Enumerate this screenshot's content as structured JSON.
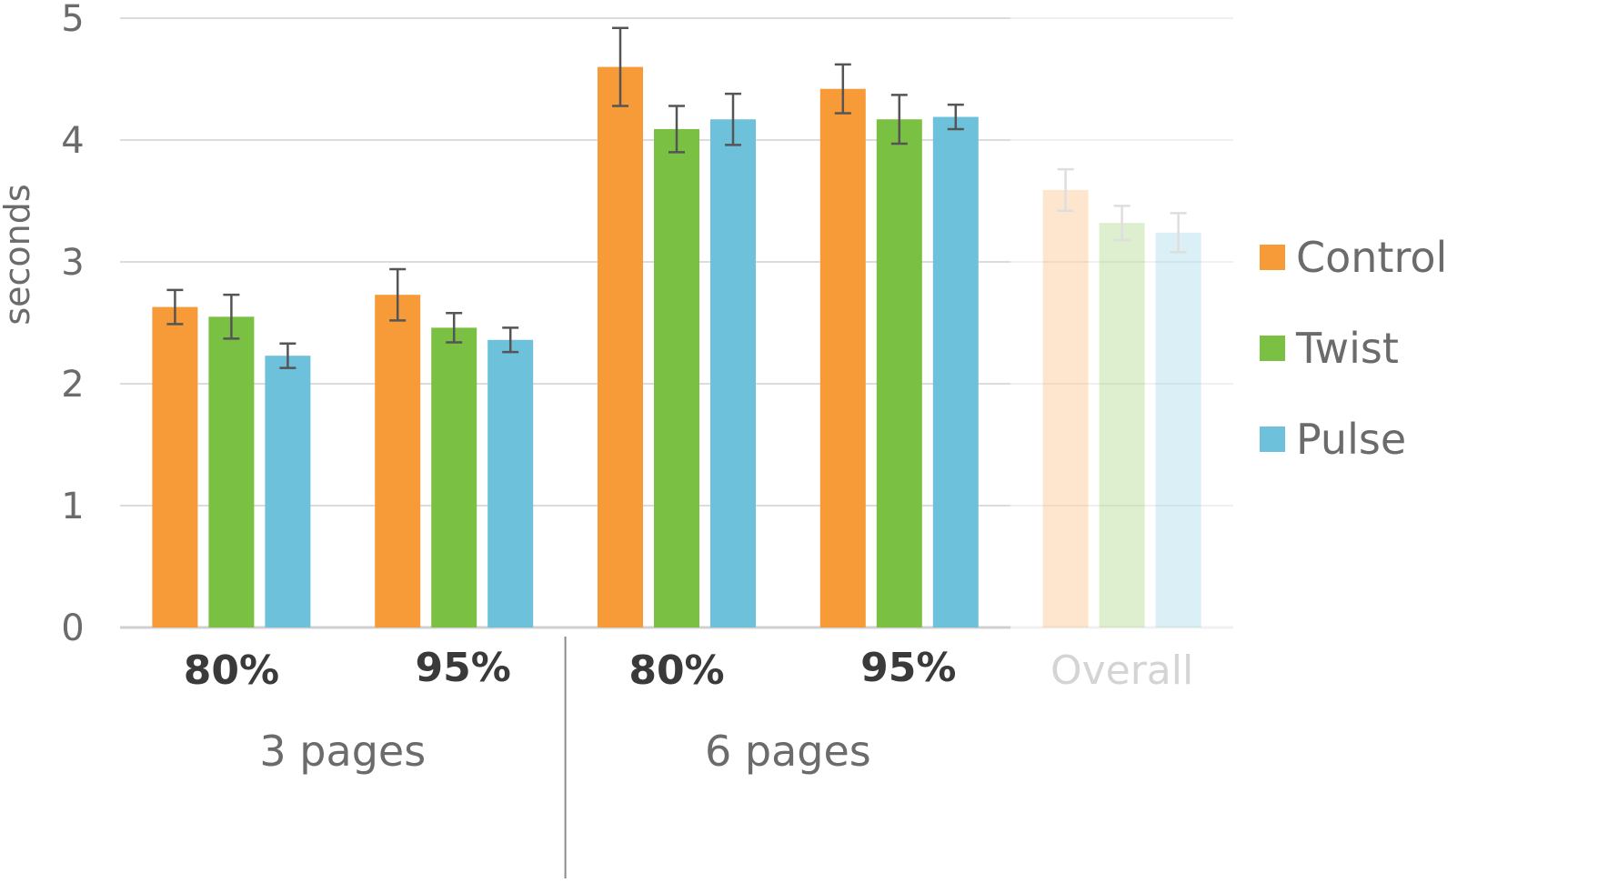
{
  "chart_data": {
    "type": "bar",
    "title": "",
    "xlabel": "",
    "ylabel": "seconds",
    "ylim": [
      0,
      5
    ],
    "yticks": [
      "0",
      "1",
      "2",
      "3",
      "4",
      "5"
    ],
    "grid": true,
    "legend_position": "right",
    "categories": [
      "80%",
      "95%",
      "80%",
      "95%",
      "Overall"
    ],
    "category_emphasis": [
      "bold",
      "bold",
      "bold",
      "bold",
      "faded"
    ],
    "groups": [
      {
        "label": "3 pages",
        "categories": [
          0,
          1
        ]
      },
      {
        "label": "6 pages",
        "categories": [
          2,
          3
        ]
      }
    ],
    "series": [
      {
        "name": "Control",
        "color": "#f79a38",
        "values": [
          2.63,
          2.73,
          4.6,
          4.42,
          3.59
        ],
        "errors": [
          0.14,
          0.21,
          0.32,
          0.2,
          0.17
        ]
      },
      {
        "name": "Twist",
        "color": "#7ac143",
        "values": [
          2.55,
          2.46,
          4.09,
          4.17,
          3.32
        ],
        "errors": [
          0.18,
          0.12,
          0.19,
          0.2,
          0.14
        ]
      },
      {
        "name": "Pulse",
        "color": "#6ec1da",
        "values": [
          2.23,
          2.36,
          4.17,
          4.19,
          3.24
        ],
        "errors": [
          0.1,
          0.1,
          0.21,
          0.1,
          0.16
        ]
      }
    ],
    "faded_categories": [
      4
    ]
  }
}
